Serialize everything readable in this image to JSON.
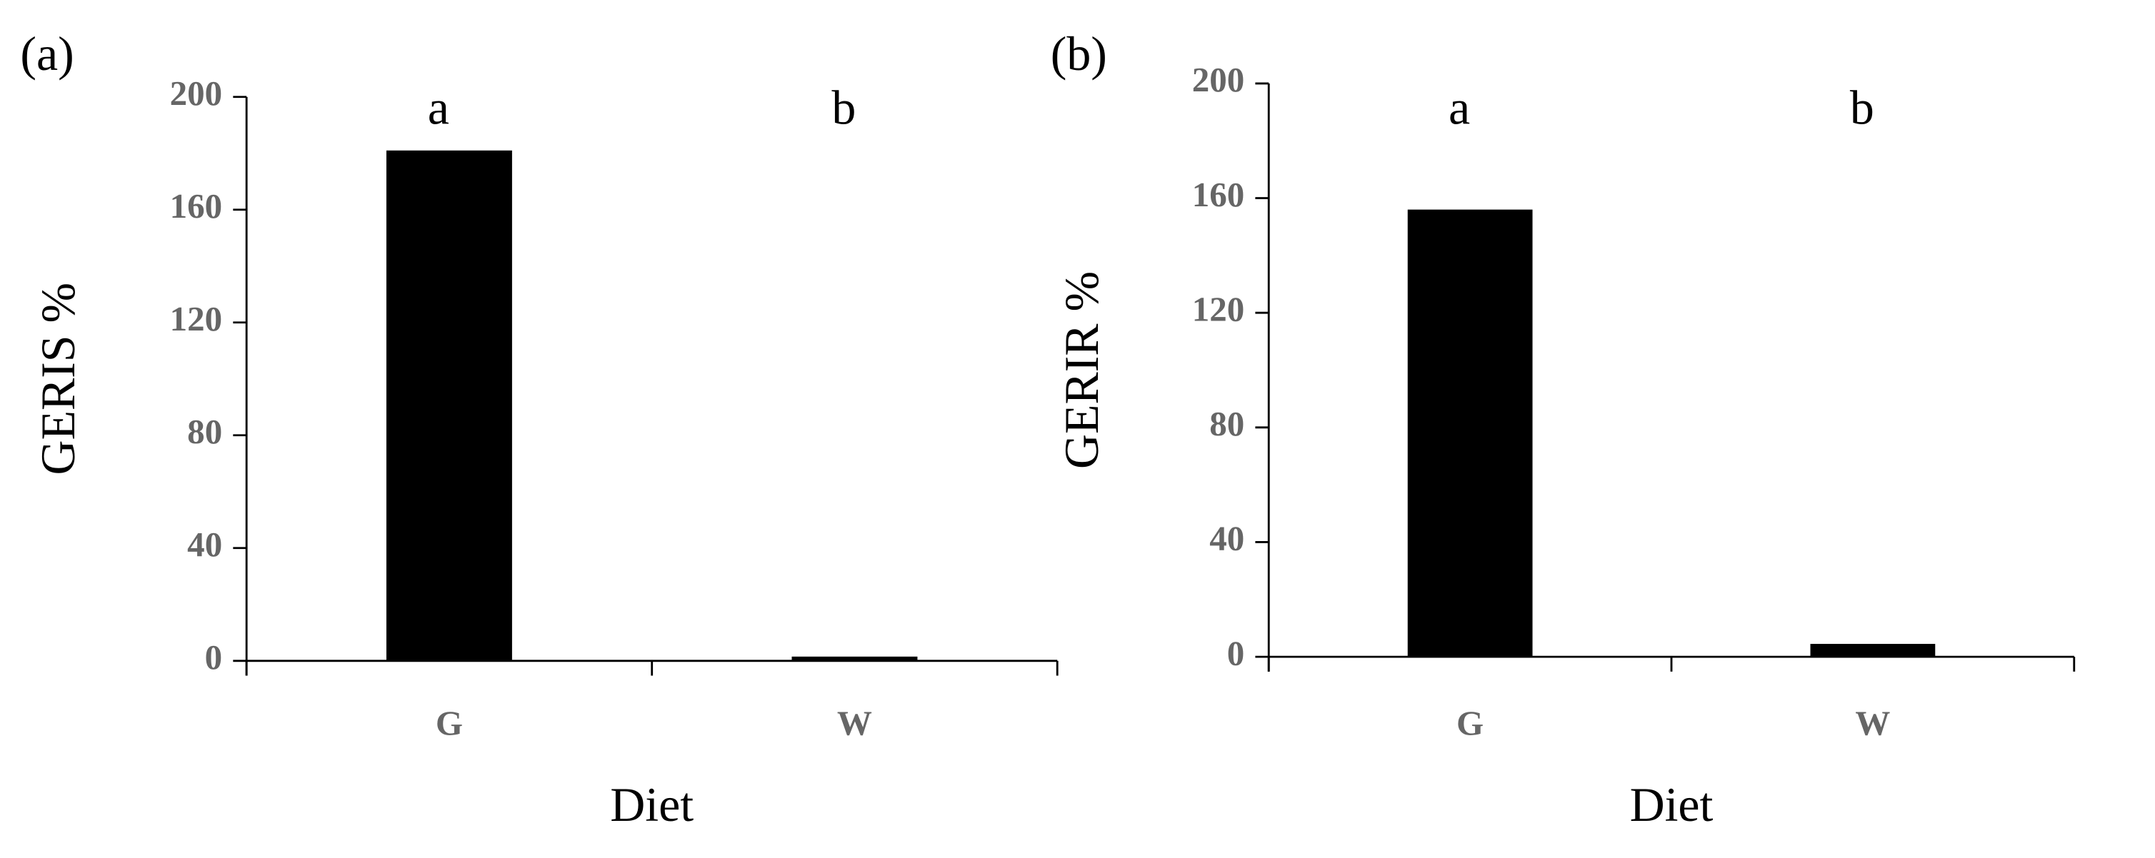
{
  "chart_data": [
    {
      "type": "bar",
      "panel_label": "(a)",
      "categories": [
        "G",
        "W"
      ],
      "values": [
        181,
        1.5
      ],
      "color": "#000000",
      "annotations": [
        "a",
        "b"
      ],
      "ylabel": "GERIS %",
      "xlabel": "Diet",
      "ylim": [
        0,
        200
      ],
      "yticks": [
        0,
        40,
        80,
        120,
        160,
        200
      ]
    },
    {
      "type": "bar",
      "panel_label": "(b)",
      "categories": [
        "G",
        "W"
      ],
      "values": [
        156,
        4.5
      ],
      "color": "#000000",
      "annotations": [
        "a",
        "b"
      ],
      "ylabel": "GERIR %",
      "xlabel": "Diet",
      "ylim": [
        0,
        200
      ],
      "yticks": [
        0,
        40,
        80,
        120,
        160,
        200
      ]
    }
  ]
}
